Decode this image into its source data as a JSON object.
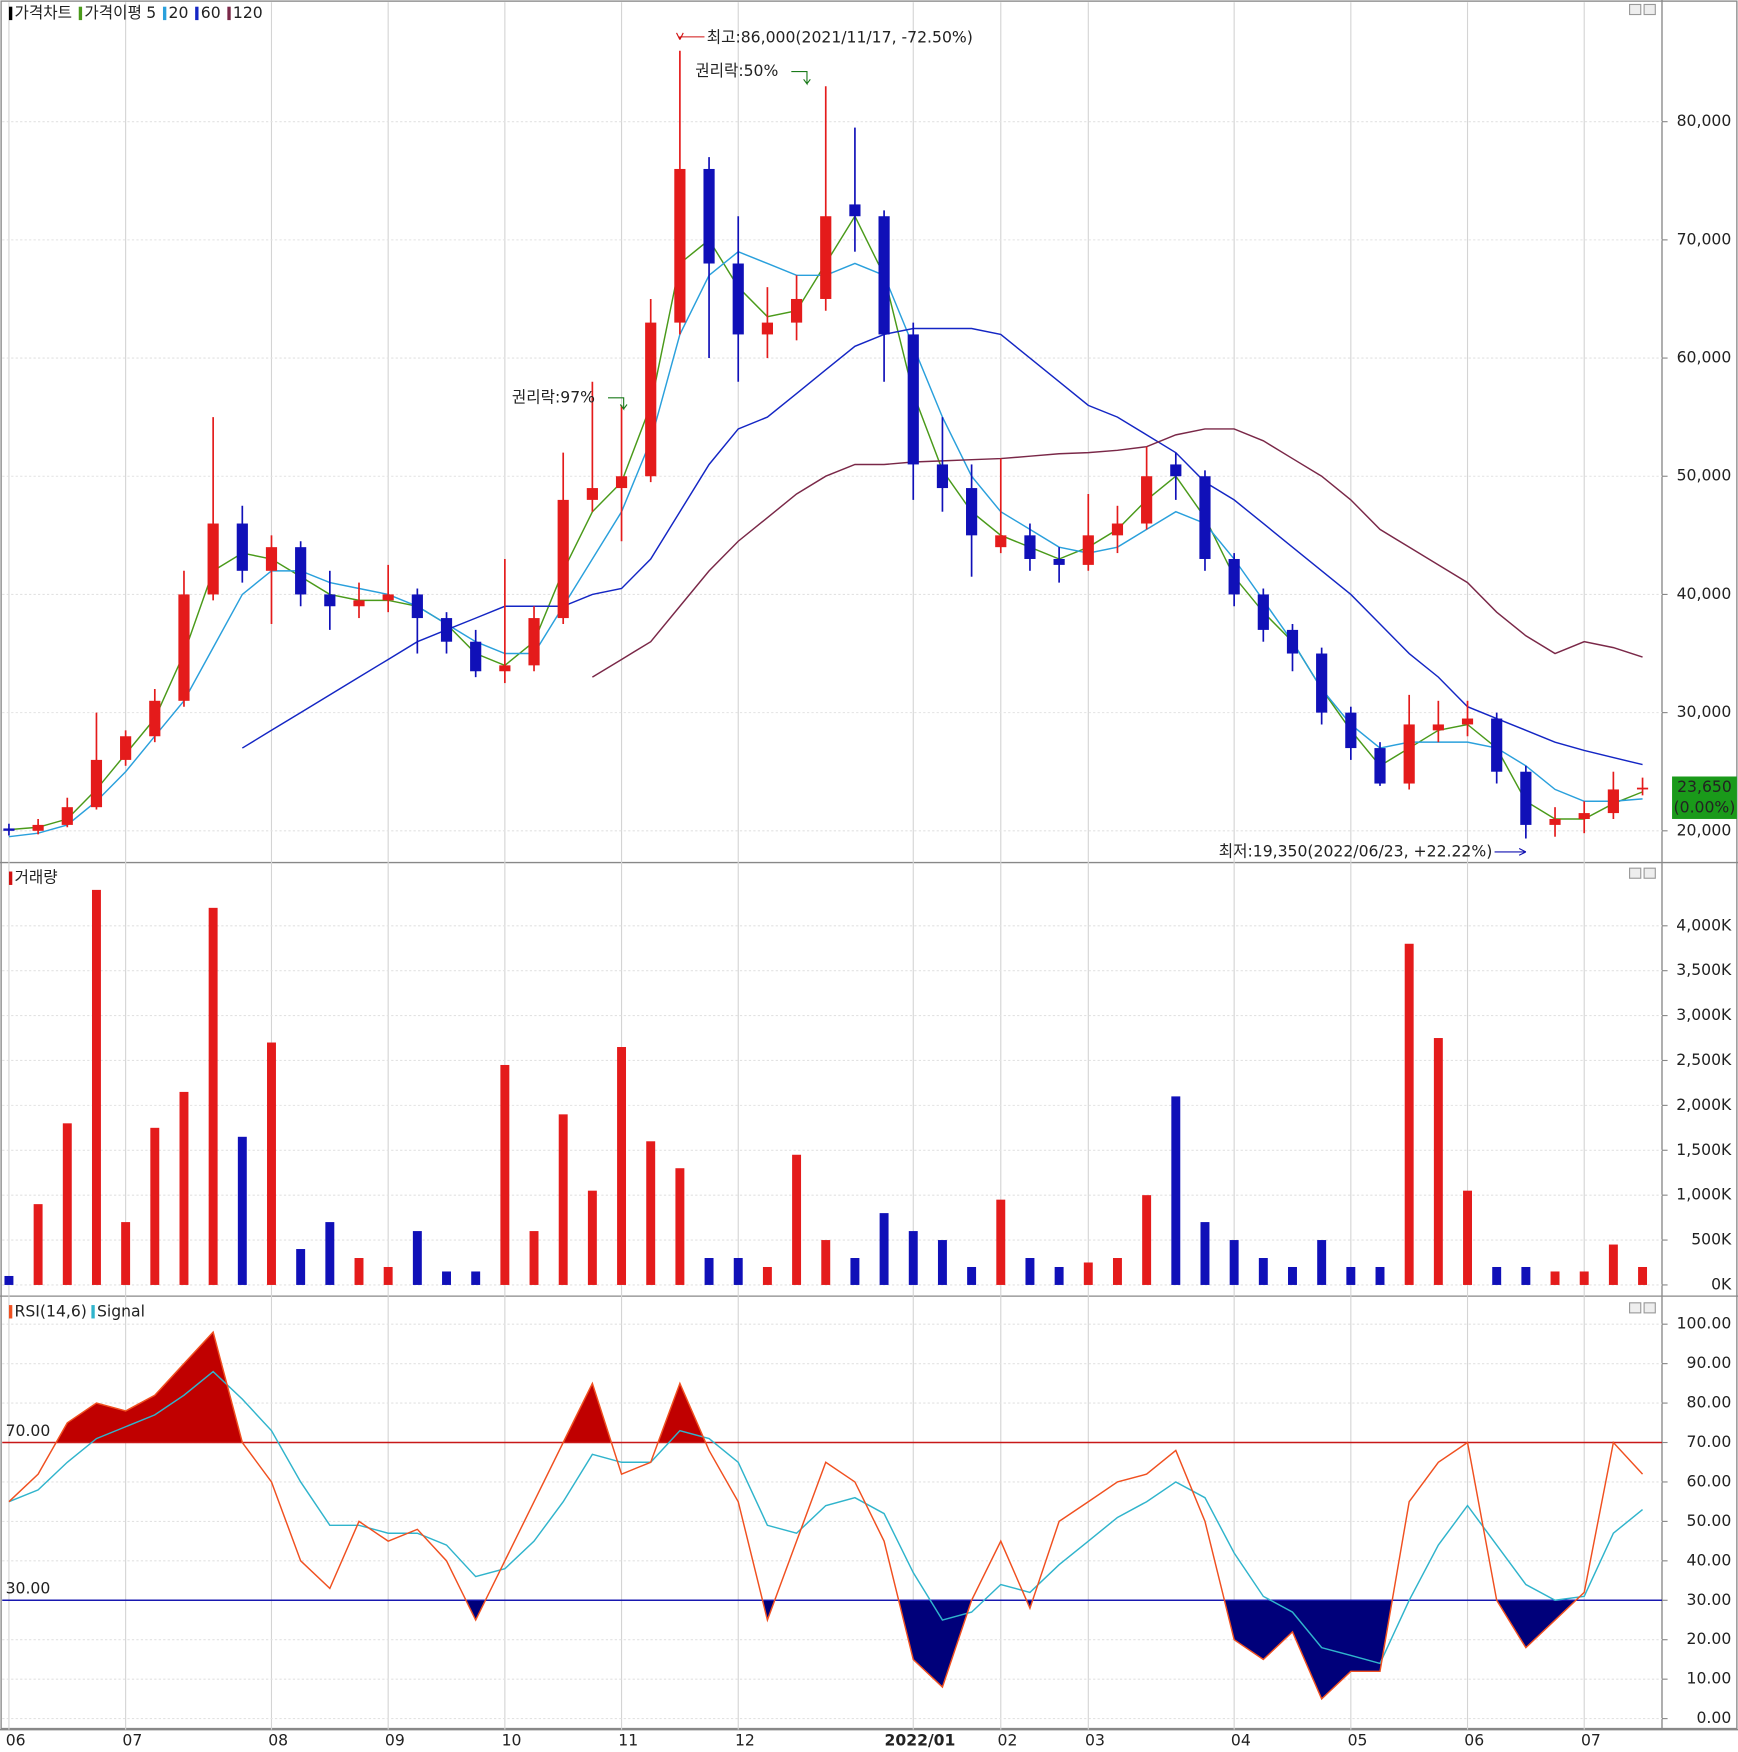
{
  "chart_data": [
    {
      "type": "candlestick",
      "title": "가격차트",
      "ma_title": "가격이평",
      "up_color": "#e41b1b",
      "down_color": "#1010b8",
      "open": [
        20200,
        20000,
        20500,
        22000,
        26000,
        28000,
        31000,
        40000,
        46000,
        42000,
        44000,
        40000,
        39000,
        39500,
        40000,
        38000,
        36000,
        33500,
        34000,
        38000,
        48000,
        49000,
        50000,
        63000,
        76000,
        68000,
        62000,
        63000,
        65000,
        73000,
        72000,
        62000,
        51000,
        49000,
        44000,
        45000,
        43000,
        42500,
        45000,
        46000,
        51000,
        50000,
        43000,
        40000,
        37000,
        35000,
        30000,
        27000,
        24000,
        28500,
        29000,
        29500,
        25000,
        20500,
        21000,
        21500,
        23500
      ],
      "high": [
        20600,
        21000,
        22800,
        30000,
        28500,
        32000,
        42000,
        55000,
        47500,
        45000,
        44500,
        42000,
        41000,
        42500,
        40500,
        38500,
        37000,
        43000,
        39000,
        52000,
        58000,
        56000,
        65000,
        86000,
        77000,
        72000,
        66000,
        67000,
        83000,
        79500,
        72500,
        63000,
        55000,
        51000,
        51500,
        46000,
        44000,
        48500,
        47500,
        52500,
        52000,
        50500,
        43500,
        40500,
        37500,
        35500,
        30500,
        27500,
        31500,
        31000,
        31000,
        30000,
        25500,
        22000,
        22500,
        25000,
        24500
      ],
      "low": [
        19600,
        19700,
        20300,
        21800,
        25500,
        27500,
        30500,
        39500,
        41000,
        37500,
        39000,
        37000,
        38000,
        38500,
        35000,
        35000,
        33000,
        32500,
        33500,
        37500,
        47000,
        44500,
        49500,
        62000,
        60000,
        58000,
        60000,
        61500,
        64000,
        69000,
        58000,
        48000,
        47000,
        41500,
        43500,
        42000,
        41000,
        42000,
        43500,
        45500,
        48000,
        42000,
        39000,
        36000,
        33500,
        29000,
        26000,
        23800,
        23500,
        27500,
        28000,
        24000,
        19350,
        19500,
        19800,
        21000,
        23000
      ],
      "close": [
        20000,
        20500,
        22000,
        26000,
        28000,
        31000,
        40000,
        46000,
        42000,
        44000,
        40000,
        39000,
        39500,
        40000,
        38000,
        36000,
        33500,
        34000,
        38000,
        48000,
        49000,
        50000,
        63000,
        76000,
        68000,
        62000,
        63000,
        65000,
        72000,
        72000,
        62000,
        51000,
        49000,
        45000,
        45000,
        43000,
        42500,
        45000,
        46000,
        50000,
        50000,
        43000,
        40000,
        37000,
        35000,
        30000,
        27000,
        24000,
        29000,
        29000,
        29500,
        25000,
        20500,
        21000,
        21500,
        23500,
        23650
      ],
      "series": [
        {
          "name": "5",
          "color": "#4a9a1a",
          "values": [
            20100,
            20300,
            21000,
            23500,
            26500,
            29500,
            35000,
            42000,
            43500,
            43000,
            41500,
            40000,
            39500,
            39500,
            39000,
            37500,
            35000,
            34000,
            36000,
            42000,
            47000,
            49500,
            56000,
            68000,
            70000,
            66000,
            63500,
            64000,
            68000,
            72000,
            67000,
            57000,
            50500,
            47000,
            45000,
            44000,
            43000,
            44000,
            45500,
            48000,
            50000,
            46500,
            41500,
            38500,
            36000,
            32000,
            28500,
            25500,
            27000,
            28500,
            29000,
            27000,
            22500,
            21000,
            21000,
            22300,
            23300
          ]
        },
        {
          "name": "20",
          "color": "#2aa0dc",
          "values": [
            19500,
            19800,
            20500,
            22500,
            25000,
            28000,
            31000,
            35500,
            40000,
            42000,
            42000,
            41000,
            40500,
            40000,
            39000,
            37500,
            36000,
            35000,
            35000,
            39000,
            43000,
            47000,
            53000,
            62000,
            67000,
            69000,
            68000,
            67000,
            67000,
            68000,
            67000,
            61000,
            55000,
            50000,
            47000,
            45500,
            44000,
            43500,
            44000,
            45500,
            47000,
            46000,
            43000,
            39500,
            36000,
            32000,
            29000,
            27000,
            27500,
            27500,
            27500,
            27000,
            25500,
            23500,
            22500,
            22500,
            22700
          ]
        },
        {
          "name": "60",
          "color": "#1426c4",
          "values": [
            null,
            null,
            null,
            null,
            null,
            null,
            null,
            null,
            27000,
            28500,
            30000,
            31500,
            33000,
            34500,
            36000,
            37000,
            38000,
            39000,
            39000,
            39000,
            40000,
            40500,
            43000,
            47000,
            51000,
            54000,
            55000,
            57000,
            59000,
            61000,
            62000,
            62500,
            62500,
            62500,
            62000,
            60000,
            58000,
            56000,
            55000,
            53500,
            52000,
            49500,
            48000,
            46000,
            44000,
            42000,
            40000,
            37500,
            35000,
            33000,
            30500,
            29500,
            28500,
            27500,
            26800,
            26200,
            25600
          ]
        },
        {
          "name": "120",
          "color": "#7a2848",
          "values": [
            null,
            null,
            null,
            null,
            null,
            null,
            null,
            null,
            null,
            null,
            null,
            null,
            null,
            null,
            null,
            null,
            null,
            null,
            null,
            null,
            33000,
            34500,
            36000,
            39000,
            42000,
            44500,
            46500,
            48500,
            50000,
            51000,
            51000,
            51200,
            51300,
            51400,
            51500,
            51700,
            51900,
            52000,
            52200,
            52500,
            53500,
            54000,
            54000,
            53000,
            51500,
            50000,
            48000,
            45500,
            44000,
            42500,
            41000,
            38500,
            36500,
            35000,
            36000,
            35500,
            34700
          ]
        }
      ],
      "ylim": [
        17500,
        88500
      ],
      "yticks": [
        {
          "value": 20000,
          "label": "20,000"
        },
        {
          "value": 30000,
          "label": "30,000"
        },
        {
          "value": 40000,
          "label": "40,000"
        },
        {
          "value": 50000,
          "label": "50,000"
        },
        {
          "value": 60000,
          "label": "60,000"
        },
        {
          "value": 70000,
          "label": "70,000"
        },
        {
          "value": 80000,
          "label": "80,000"
        }
      ],
      "last_price": {
        "value": 23650,
        "label": "23,650"
      },
      "last_change": "(0.00%)",
      "last_color": "#1a9a1a",
      "annotations": [
        "최고:86,000(2021/11/17, -72.50%)",
        "권리락:50%",
        "권리락:97%",
        "최저:19,350(2022/06/23, +22.22%)"
      ],
      "annotation_colors": [
        "#d01010",
        "#1a7a1a",
        "#1a7a1a",
        "#1010b0"
      ],
      "grid": true
    },
    {
      "type": "bar",
      "title": "거래량",
      "title_color": "#d01010",
      "values": [
        100,
        900,
        1800,
        4400,
        700,
        1750,
        2150,
        4200,
        1650,
        2700,
        400,
        700,
        300,
        200,
        600,
        150,
        150,
        2450,
        600,
        1900,
        1050,
        2650,
        1600,
        1300,
        300,
        300,
        200,
        1450,
        500,
        300,
        800,
        600,
        500,
        200,
        950,
        300,
        200,
        250,
        300,
        1000,
        2100,
        700,
        500,
        300,
        200,
        500,
        200,
        200,
        3800,
        2750,
        1050,
        200,
        200,
        150,
        150,
        450,
        200
      ],
      "ylim": [
        0,
        4480
      ],
      "yticks": [
        {
          "value": 0,
          "label": "0K"
        },
        {
          "value": 500,
          "label": "500K"
        },
        {
          "value": 1000,
          "label": "1,000K"
        },
        {
          "value": 1500,
          "label": "1,500K"
        },
        {
          "value": 2000,
          "label": "2,000K"
        },
        {
          "value": 2500,
          "label": "2,500K"
        },
        {
          "value": 3000,
          "label": "3,000K"
        },
        {
          "value": 3500,
          "label": "3,500K"
        },
        {
          "value": 4000,
          "label": "4,000K"
        }
      ],
      "grid": true
    },
    {
      "type": "line",
      "categories": [
        "06",
        null,
        null,
        null,
        "07",
        null,
        null,
        null,
        null,
        "08",
        null,
        null,
        null,
        "09",
        null,
        null,
        null,
        "10",
        null,
        null,
        null,
        "11",
        null,
        null,
        null,
        "12",
        null,
        null,
        null,
        null,
        null,
        "2022/01",
        null,
        null,
        "02",
        null,
        null,
        "03",
        null,
        null,
        null,
        null,
        "04",
        null,
        null,
        null,
        "05",
        null,
        null,
        null,
        "06",
        null,
        null,
        null,
        "07",
        null,
        null
      ],
      "series": [
        {
          "name": "RSI(14,6)",
          "color": "#f05020",
          "values": [
            55,
            62,
            75,
            80,
            78,
            82,
            90,
            98,
            70,
            60,
            40,
            33,
            50,
            45,
            48,
            40,
            25,
            40,
            55,
            70,
            85,
            62,
            65,
            85,
            68,
            55,
            25,
            45,
            65,
            60,
            45,
            15,
            8,
            30,
            45,
            28,
            50,
            55,
            60,
            62,
            68,
            50,
            20,
            15,
            22,
            5,
            12,
            12,
            55,
            65,
            70,
            30,
            18,
            25,
            32,
            70,
            62
          ]
        },
        {
          "name": "Signal",
          "color": "#30b4cc",
          "values": [
            55,
            58,
            65,
            71,
            74,
            77,
            82,
            88,
            81,
            73,
            60,
            49,
            49,
            47,
            47,
            44,
            36,
            38,
            45,
            55,
            67,
            65,
            65,
            73,
            71,
            65,
            49,
            47,
            54,
            56,
            52,
            37,
            25,
            27,
            34,
            32,
            39,
            45,
            51,
            55,
            60,
            56,
            42,
            31,
            27,
            18,
            16,
            14,
            30,
            44,
            54,
            44,
            34,
            30,
            31,
            47,
            53
          ]
        }
      ],
      "levels": [
        {
          "value": 70,
          "label": "70.00"
        },
        {
          "value": 30,
          "label": "30.00"
        }
      ],
      "level_colors": [
        "#c81818",
        "#1818b0"
      ],
      "fill_colors": [
        "#c00000",
        "#00007a"
      ],
      "ylim": [
        -2.8,
        105.7
      ],
      "yticks": [
        {
          "value": 0,
          "label": "0.00"
        },
        {
          "value": 10,
          "label": "10.00"
        },
        {
          "value": 20,
          "label": "20.00"
        },
        {
          "value": 30,
          "label": "30.00"
        },
        {
          "value": 40,
          "label": "40.00"
        },
        {
          "value": 50,
          "label": "50.00"
        },
        {
          "value": 60,
          "label": "60.00"
        },
        {
          "value": 70,
          "label": "70.00"
        },
        {
          "value": 80,
          "label": "80.00"
        },
        {
          "value": 90,
          "label": "90.00"
        },
        {
          "value": 100,
          "label": "100.00"
        }
      ],
      "grid": true
    }
  ]
}
